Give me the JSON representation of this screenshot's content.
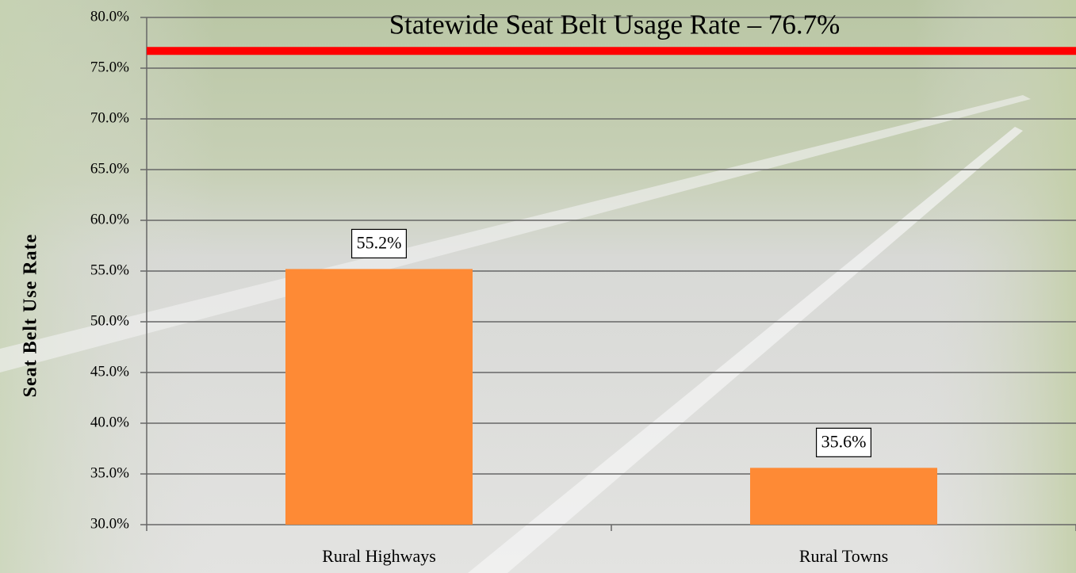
{
  "chart_data": {
    "type": "bar",
    "y_label": "Seat Belt Use Rate",
    "categories": [
      "Rural Highways",
      "Rural Towns"
    ],
    "values": [
      55.2,
      35.6
    ],
    "value_labels": [
      "55.2%",
      "35.6%"
    ],
    "color": "#fe8a35",
    "ylim": [
      30,
      80
    ],
    "yticks": [
      {
        "value": 30,
        "label": "30.0%"
      },
      {
        "value": 35,
        "label": "35.0%"
      },
      {
        "value": 40,
        "label": "40.0%"
      },
      {
        "value": 45,
        "label": "45.0%"
      },
      {
        "value": 50,
        "label": "50.0%"
      },
      {
        "value": 55,
        "label": "55.0%"
      },
      {
        "value": 60,
        "label": "60.0%"
      },
      {
        "value": 65,
        "label": "65.0%"
      },
      {
        "value": 70,
        "label": "70.0%"
      },
      {
        "value": 75,
        "label": "75.0%"
      },
      {
        "value": 80,
        "label": "80.0%"
      }
    ],
    "grid": true,
    "reference_line": {
      "value": 76.7,
      "label": "Statewide Seat Belt Usage Rate – 76.7%",
      "color": "#ff0000"
    }
  }
}
